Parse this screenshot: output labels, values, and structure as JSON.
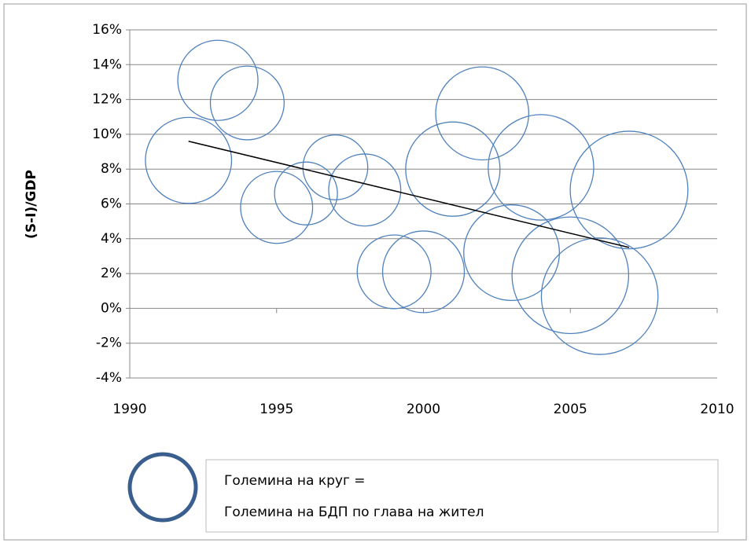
{
  "chart_data": {
    "type": "bubble",
    "y_label": "(S-I)/GDP",
    "x": [
      1992,
      1993,
      1994,
      1995,
      1996,
      1997,
      1998,
      1999,
      2000,
      2001,
      2002,
      2003,
      2004,
      2005,
      2006,
      2007
    ],
    "values": [
      8.5,
      13.1,
      11.8,
      5.8,
      6.6,
      8.1,
      6.8,
      2.1,
      2.1,
      8.0,
      11.2,
      3.2,
      8.1,
      1.9,
      0.7,
      6.8
    ],
    "sizes": [
      30,
      26,
      22,
      21,
      16,
      17,
      21,
      22,
      27,
      36,
      35,
      37,
      45,
      55,
      55,
      56
    ],
    "color": "#4f81bd",
    "trendline": {
      "x": [
        1992,
        2007
      ],
      "values": [
        9.6,
        3.5
      ],
      "color": "#000000"
    },
    "xlim": [
      1990,
      2010
    ],
    "xticks": [
      1990,
      1995,
      2000,
      2005,
      2010
    ],
    "ylim": [
      -4,
      16
    ],
    "yticks": [
      {
        "value": -4,
        "label": "-4%"
      },
      {
        "value": -2,
        "label": "-2%"
      },
      {
        "value": 0,
        "label": "0%"
      },
      {
        "value": 2,
        "label": "2%"
      },
      {
        "value": 4,
        "label": "4%"
      },
      {
        "value": 6,
        "label": "6%"
      },
      {
        "value": 8,
        "label": "8%"
      },
      {
        "value": 10,
        "label": "10%"
      },
      {
        "value": 12,
        "label": "12%"
      },
      {
        "value": 14,
        "label": "14%"
      },
      {
        "value": 16,
        "label": "16%"
      }
    ],
    "grid": true,
    "legend": {
      "lines": [
        "Големина на круг =",
        "Големина на БДП по глава на жител"
      ]
    }
  }
}
